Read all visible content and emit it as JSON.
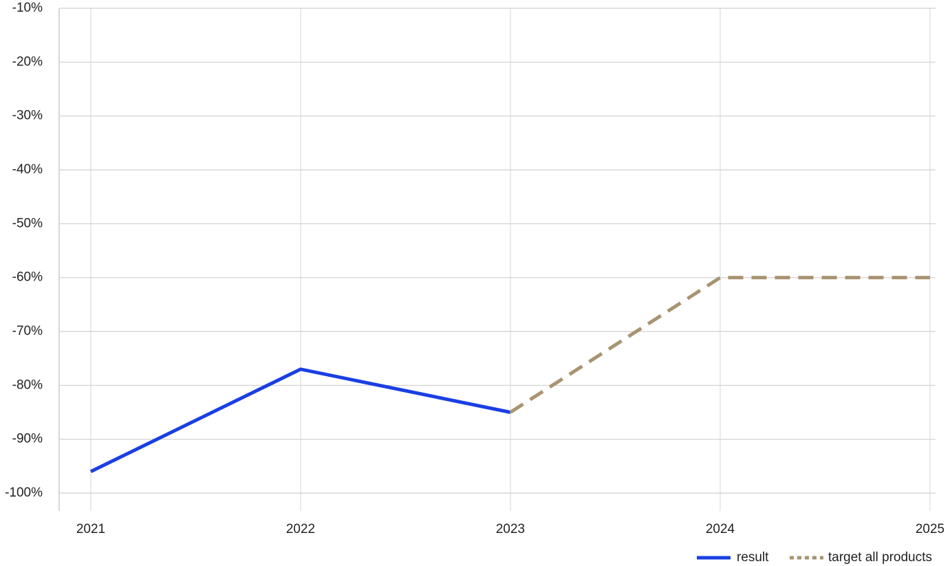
{
  "chart_data": {
    "type": "line",
    "categories": [
      "2021",
      "2022",
      "2023",
      "2024",
      "2025"
    ],
    "series": [
      {
        "name": "result",
        "color": "#1a3fe3",
        "line_style": "solid",
        "values": [
          -96,
          -77,
          -85,
          null,
          null
        ]
      },
      {
        "name": "target all products",
        "color": "#a89472",
        "line_style": "dashed",
        "values": [
          null,
          null,
          -85,
          -60,
          -60
        ]
      }
    ],
    "ylim": [
      -100,
      -10
    ],
    "yticks": [
      {
        "value": -10,
        "label": "-10%"
      },
      {
        "value": -20,
        "label": "-20%"
      },
      {
        "value": -30,
        "label": "-30%"
      },
      {
        "value": -40,
        "label": "-40%"
      },
      {
        "value": -50,
        "label": "-50%"
      },
      {
        "value": -60,
        "label": "-60%"
      },
      {
        "value": -70,
        "label": "-70%"
      },
      {
        "value": -80,
        "label": "-80%"
      },
      {
        "value": -90,
        "label": "-90%"
      },
      {
        "value": -100,
        "label": "-100%"
      }
    ],
    "grid": true,
    "legend": "bottom-right"
  }
}
